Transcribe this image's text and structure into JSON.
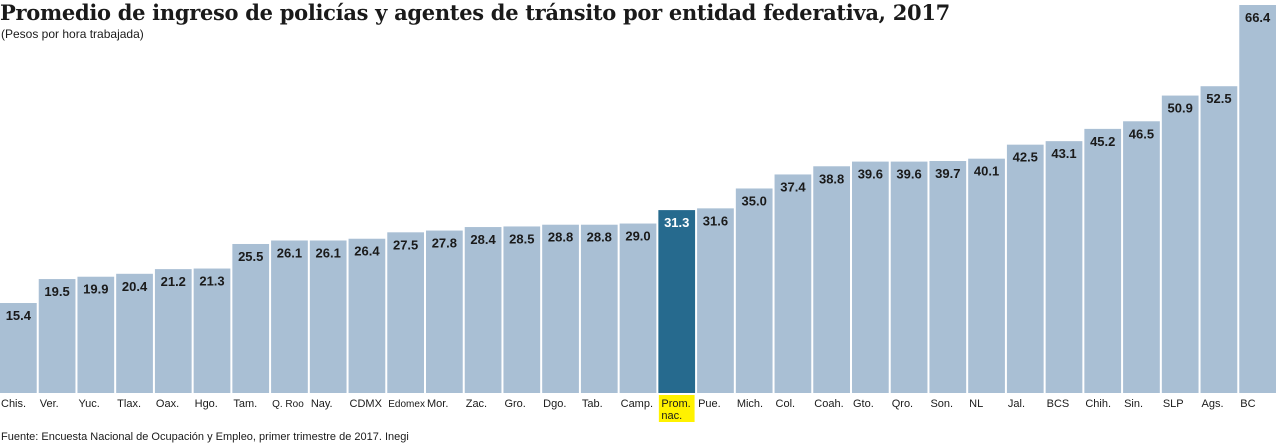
{
  "chart_data": {
    "type": "bar",
    "title": "Promedio de ingreso de policías y agentes de tránsito por entidad federativa, 2017",
    "subtitle": "(Pesos por hora trabajada)",
    "source": "Fuente: Encuesta Nacional de Ocupación y Empleo, primer trimestre de 2017. Inegi",
    "xlabel": "",
    "ylabel": "",
    "ylim": [
      0,
      66.4
    ],
    "grid": false,
    "categories": [
      "Chis.",
      "Ver.",
      "Yuc.",
      "Tlax.",
      "Oax.",
      "Hgo.",
      "Tam.",
      "Q. Roo",
      "Nay.",
      "CDMX",
      "Edomex",
      "Mor.",
      "Zac.",
      "Gro.",
      "Dgo.",
      "Tab.",
      "Camp.",
      "Prom. nac.",
      "Pue.",
      "Mich.",
      "Col.",
      "Coah.",
      "Gto.",
      "Qro.",
      "Son.",
      "NL",
      "Jal.",
      "BCS",
      "Chih.",
      "Sin.",
      "SLP",
      "Ags.",
      "BC"
    ],
    "values": [
      15.4,
      19.5,
      19.9,
      20.4,
      21.2,
      21.3,
      25.5,
      26.1,
      26.1,
      26.4,
      27.5,
      27.8,
      28.4,
      28.5,
      28.8,
      28.8,
      29.0,
      31.3,
      31.6,
      35.0,
      37.4,
      38.8,
      39.6,
      39.6,
      39.7,
      40.1,
      42.5,
      43.1,
      45.2,
      46.5,
      50.9,
      52.5,
      66.4
    ],
    "value_labels": [
      "15.4",
      "19.5",
      "19.9",
      "20.4",
      "21.2",
      "21.3",
      "25.5",
      "26.1",
      "26.1",
      "26.4",
      "27.5",
      "27.8",
      "28.4",
      "28.5",
      "28.8",
      "28.8",
      "29.0",
      "31.3",
      "31.6",
      "35.0",
      "37.4",
      "38.8",
      "39.6",
      "39.6",
      "39.7",
      "40.1",
      "42.5",
      "43.1",
      "45.2",
      "46.5",
      "50.9",
      "52.5",
      "66.4"
    ],
    "highlight": "Prom. nac.",
    "colors": {
      "bar": "#a9bfd4",
      "highlight_bar": "#266a8e",
      "highlight_label_bg": "#fff200",
      "label": "#1a1a1a",
      "highlight_value": "#ffffff"
    }
  }
}
